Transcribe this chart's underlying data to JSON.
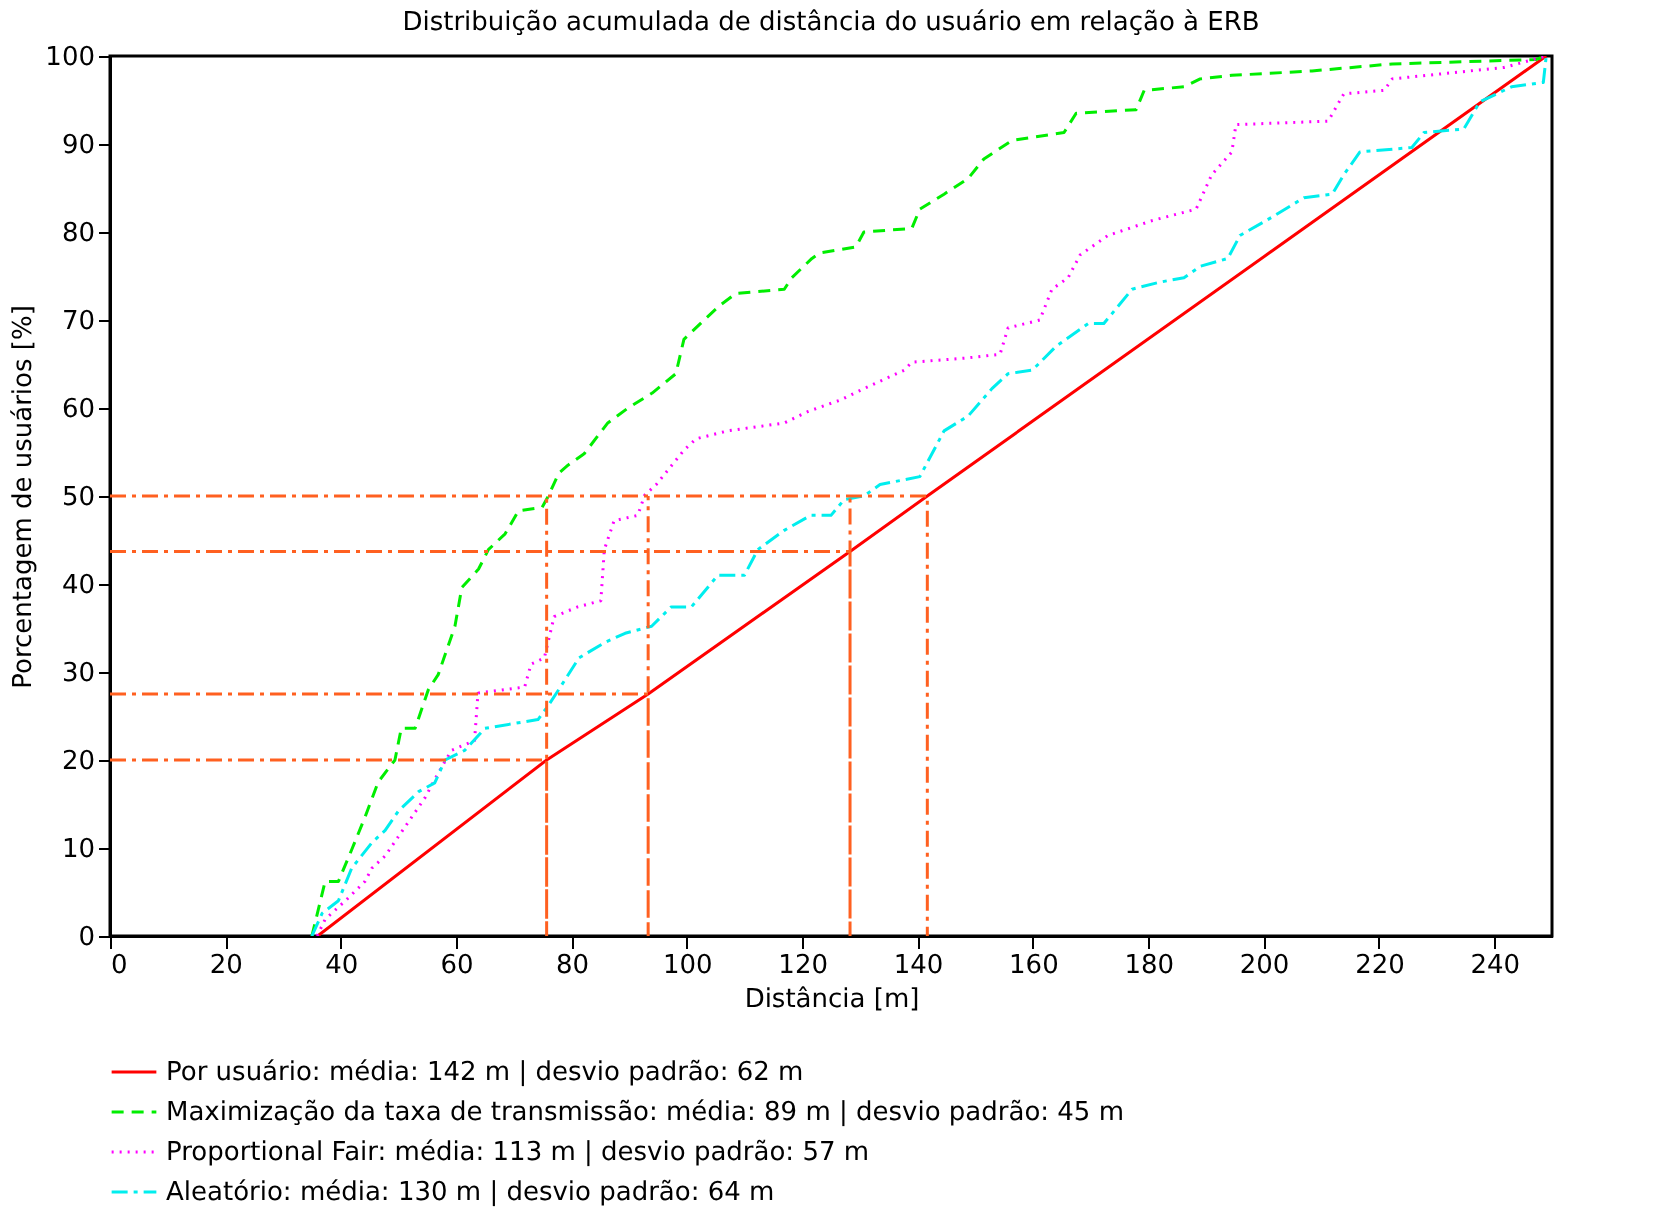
{
  "chart_data": {
    "type": "line",
    "title": "Distribuição acumulada de distância do usuário em relação à ERB",
    "xlabel": "Distância [m]",
    "ylabel": "Porcentagem de usuários [%]",
    "xlim": [
      0,
      250
    ],
    "ylim": [
      0,
      100
    ],
    "xticks": [
      0,
      20,
      40,
      60,
      80,
      100,
      120,
      140,
      160,
      180,
      200,
      220,
      240
    ],
    "yticks": [
      0,
      10,
      20,
      30,
      40,
      50,
      60,
      70,
      80,
      90,
      100
    ],
    "legend": "bottom",
    "series": [
      {
        "name": "Por usuário: média: 142 m | desvio padrão: 62 m",
        "color": "#ff0000",
        "line_style": "solid",
        "x": [
          36,
          75.7,
          93.3,
          128.3,
          141.7,
          249
        ],
        "values": [
          0,
          20,
          27.5,
          43.7,
          50,
          100
        ]
      },
      {
        "name": "Maximização da taxa de transmissão: média: 89 m | desvio padrão: 45 m",
        "color": "#00ee00",
        "line_style": "dashed",
        "x": [
          35,
          37.3,
          39.6,
          41.9,
          44.2,
          46.5,
          49.4,
          50.5,
          52.9,
          55.2,
          56.9,
          59.8,
          61,
          63.9,
          65.6,
          68.5,
          70.8,
          74.9,
          76,
          77.8,
          79.4,
          82.2,
          86.3,
          89.8,
          94,
          98.1,
          99.5,
          103,
          105.8,
          108.5,
          116.9,
          118.2,
          121.7,
          123,
          129.3,
          130.7,
          139,
          140.4,
          144.6,
          148.8,
          151.5,
          156.4,
          165.4,
          167.5,
          177.9,
          179.3,
          186.2,
          189,
          194.5,
          208.4,
          222.3,
          247.2,
          249
        ],
        "values": [
          0,
          6.2,
          6.2,
          9.8,
          13.5,
          17.5,
          20,
          23.6,
          23.6,
          28,
          29.7,
          35.2,
          39.6,
          41.7,
          43.9,
          45.7,
          48.3,
          48.7,
          50,
          52.6,
          53.5,
          54.8,
          58.3,
          60,
          61.7,
          63.9,
          67.8,
          70,
          71.7,
          73,
          73.5,
          74.8,
          77,
          77.6,
          78.3,
          80,
          80.4,
          82.6,
          84.3,
          86.1,
          88.3,
          90.4,
          91.3,
          93.5,
          93.9,
          96.1,
          96.5,
          97.4,
          97.8,
          98.3,
          99.1,
          99.6,
          100
        ]
      },
      {
        "name": "Proportional Fair: média: 113 m | desvio padrão: 57 m",
        "color": "#ff00ff",
        "line_style": "dotted",
        "x": [
          35.9,
          37.3,
          40.8,
          44.2,
          45.4,
          47.7,
          50,
          52.3,
          54.6,
          56.9,
          59.2,
          63.2,
          63.8,
          71.9,
          73,
          75.3,
          77,
          81.1,
          85.1,
          85.7,
          87.4,
          91.5,
          92.7,
          94.7,
          99.5,
          101.6,
          107.1,
          116.9,
          121,
          126.6,
          130.7,
          137.7,
          139,
          148.8,
          154.3,
          155.7,
          161.2,
          163.3,
          166.1,
          168.2,
          173,
          180.7,
          188.3,
          191,
          194.5,
          195.2,
          211.2,
          213.9,
          220.9,
          222.3,
          241.7,
          249
        ],
        "values": [
          0,
          1.9,
          4,
          6.2,
          7.7,
          9.1,
          11.3,
          13.5,
          15.7,
          18.5,
          21.1,
          22.2,
          27.6,
          28.3,
          30.9,
          31.6,
          36.3,
          37.4,
          38.1,
          43.9,
          47.2,
          47.8,
          50.1,
          51.3,
          55.2,
          56.5,
          57.4,
          58.3,
          59.6,
          60.9,
          62.2,
          64.3,
          65.2,
          65.7,
          66.1,
          69.1,
          70,
          73.5,
          74.8,
          77.4,
          79.6,
          81.3,
          82.6,
          86.5,
          89.1,
          92.2,
          92.6,
          95.7,
          96.1,
          97.4,
          98.7,
          100
        ]
      },
      {
        "name": "Aleatório: média: 130 m | desvio padrão: 64 m",
        "color": "#00eeee",
        "line_style": "dashdot",
        "x": [
          35,
          36.8,
          39.6,
          41.9,
          45.4,
          47.7,
          50,
          53.5,
          56.3,
          58.1,
          61.5,
          65,
          74.2,
          76,
          77.8,
          81.3,
          85.9,
          89.3,
          93.9,
          97.3,
          100.8,
          105.4,
          110,
          112.3,
          116.9,
          121.5,
          125,
          127.3,
          130.7,
          133.5,
          140.4,
          142.5,
          144.6,
          148.8,
          152.9,
          155.7,
          159.9,
          164,
          169.6,
          172.3,
          177.2,
          182,
          186.2,
          189,
          193.8,
          195.9,
          201.5,
          207,
          211.9,
          213.9,
          216.7,
          225.7,
          227.8,
          234.7,
          237.5,
          243,
          248.5,
          249
        ],
        "values": [
          0,
          2.6,
          4,
          7.7,
          10.6,
          12,
          14.2,
          16.4,
          17.4,
          20,
          21.1,
          23.6,
          24.6,
          26.2,
          28,
          31.6,
          33.4,
          34.4,
          35.2,
          37.4,
          37.4,
          41,
          41,
          43.9,
          46.1,
          47.8,
          47.8,
          49.6,
          50,
          51.3,
          52.2,
          54.8,
          57.4,
          59.1,
          62.2,
          63.9,
          64.3,
          67,
          69.6,
          69.6,
          73.5,
          74.3,
          74.8,
          76.1,
          77,
          79.6,
          81.7,
          83.9,
          84.3,
          86.5,
          89.1,
          89.6,
          91.3,
          91.7,
          94.8,
          96.5,
          97,
          100
        ]
      },
      {
        "color": "#ff6020",
        "line_style": "dashdot",
        "x": [
          0,
          75.7,
          75.7,
          75.7
        ],
        "values": [
          20,
          20,
          0,
          50
        ]
      },
      {
        "color": "#ff6020",
        "line_style": "dashdot",
        "x": [
          0,
          93.3,
          93.3,
          93.3
        ],
        "values": [
          27.5,
          27.5,
          0,
          50
        ]
      },
      {
        "color": "#ff6020",
        "line_style": "dashdot",
        "x": [
          0,
          128.3,
          128.3,
          128.3
        ],
        "values": [
          43.7,
          43.7,
          0,
          50
        ]
      },
      {
        "color": "#ff6020",
        "line_style": "dashdot",
        "x": [
          0,
          141.7,
          141.7
        ],
        "values": [
          50,
          50,
          0
        ]
      }
    ]
  }
}
